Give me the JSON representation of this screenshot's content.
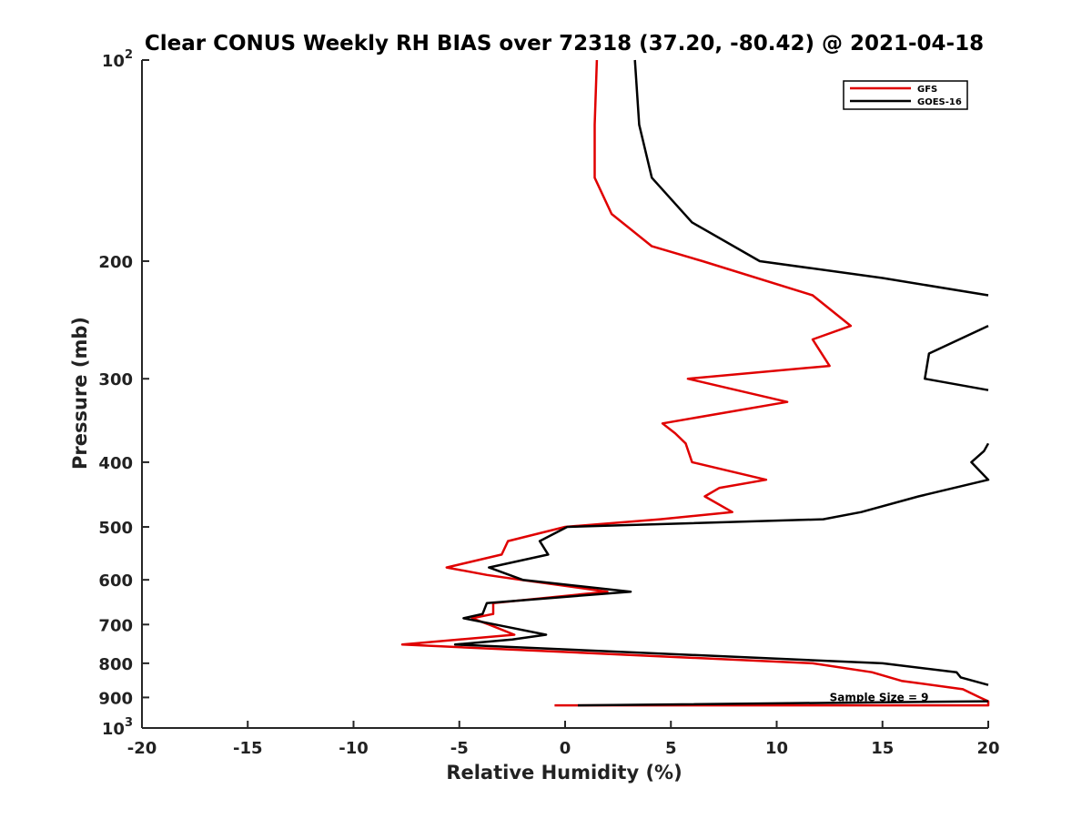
{
  "chart_data": {
    "type": "line",
    "title": "Clear CONUS Weekly RH BIAS over 72318 (37.20, -80.42) @ 2021-04-18",
    "xlabel": "Relative Humidity (%)",
    "ylabel": "Pressure (mb)",
    "xlim": [
      -20,
      20
    ],
    "ylim": [
      100,
      1000
    ],
    "y_scale": "log",
    "y_reversed": true,
    "grid": false,
    "legend_position": "top-right",
    "x_ticks": [
      "-20",
      "-15",
      "-10",
      "-5",
      "0",
      "5",
      "10",
      "15",
      "20"
    ],
    "y_ticks": [
      {
        "value": 100,
        "base": "10",
        "exp": "2"
      },
      {
        "value": 200,
        "label": "200"
      },
      {
        "value": 300,
        "label": "300"
      },
      {
        "value": 400,
        "label": "400"
      },
      {
        "value": 500,
        "label": "500"
      },
      {
        "value": 600,
        "label": "600"
      },
      {
        "value": 700,
        "label": "700"
      },
      {
        "value": 800,
        "label": "800"
      },
      {
        "value": 900,
        "label": "900"
      },
      {
        "value": 1000,
        "base": "10",
        "exp": "3"
      }
    ],
    "series": [
      {
        "name": "GFS",
        "color": "#e00000",
        "points": [
          [
            1.5,
            100
          ],
          [
            1.4,
            125
          ],
          [
            1.4,
            150
          ],
          [
            2.2,
            170
          ],
          [
            4.1,
            190
          ],
          [
            6.5,
            200
          ],
          [
            11.7,
            225
          ],
          [
            13.5,
            250
          ],
          [
            11.7,
            262
          ],
          [
            12.5,
            287
          ],
          [
            5.8,
            300
          ],
          [
            10.5,
            325
          ],
          [
            4.6,
            350
          ],
          [
            5.2,
            362
          ],
          [
            5.7,
            375
          ],
          [
            6.0,
            400
          ],
          [
            9.5,
            425
          ],
          [
            7.3,
            437
          ],
          [
            6.6,
            450
          ],
          [
            7.9,
            475
          ],
          [
            4.5,
            487
          ],
          [
            0.0,
            500
          ],
          [
            -2.7,
            525
          ],
          [
            -3.0,
            550
          ],
          [
            -5.6,
            575
          ],
          [
            -3.7,
            590
          ],
          [
            -2.1,
            600
          ],
          [
            2.0,
            625
          ],
          [
            -3.4,
            650
          ],
          [
            -3.4,
            675
          ],
          [
            -4.4,
            685
          ],
          [
            -3.6,
            700
          ],
          [
            -2.4,
            725
          ],
          [
            -7.7,
            750
          ],
          [
            11.7,
            800
          ],
          [
            14.5,
            825
          ],
          [
            15.9,
            850
          ],
          [
            18.8,
            875
          ],
          [
            19.6,
            900
          ],
          [
            20.0,
            912
          ],
          [
            20.0,
            925
          ],
          [
            1.0,
            925
          ],
          [
            -0.5,
            925
          ]
        ]
      },
      {
        "name": "GOES-16",
        "color": "#000000",
        "points": [
          [
            3.3,
            100
          ],
          [
            3.5,
            125
          ],
          [
            4.1,
            150
          ],
          [
            6.0,
            175
          ],
          [
            9.2,
            200
          ],
          [
            15.0,
            212
          ],
          [
            20.0,
            225
          ],
          null,
          [
            20.0,
            250
          ],
          [
            17.2,
            275
          ],
          [
            17.0,
            300
          ],
          [
            20.0,
            312
          ],
          null,
          [
            20.0,
            375
          ],
          [
            19.8,
            385
          ],
          [
            19.2,
            400
          ],
          [
            20.0,
            425
          ],
          [
            16.7,
            450
          ],
          [
            14.0,
            475
          ],
          [
            12.2,
            487
          ],
          [
            0.1,
            500
          ],
          [
            -1.2,
            525
          ],
          [
            -0.8,
            550
          ],
          [
            -3.6,
            575
          ],
          [
            -2.0,
            600
          ],
          [
            0.0,
            610
          ],
          [
            3.1,
            625
          ],
          [
            -3.7,
            650
          ],
          [
            -3.9,
            675
          ],
          [
            -4.8,
            685
          ],
          [
            -3.3,
            700
          ],
          [
            -0.9,
            725
          ],
          [
            -2.5,
            737
          ],
          [
            -5.2,
            750
          ],
          [
            15.0,
            800
          ],
          [
            18.5,
            825
          ],
          [
            18.7,
            840
          ],
          [
            20.0,
            862
          ],
          null,
          [
            20.0,
            912
          ],
          [
            0.6,
            925
          ]
        ]
      }
    ],
    "annotations": [
      {
        "text": "Sample Size = 9",
        "x": 12.5,
        "y": 900
      }
    ]
  }
}
